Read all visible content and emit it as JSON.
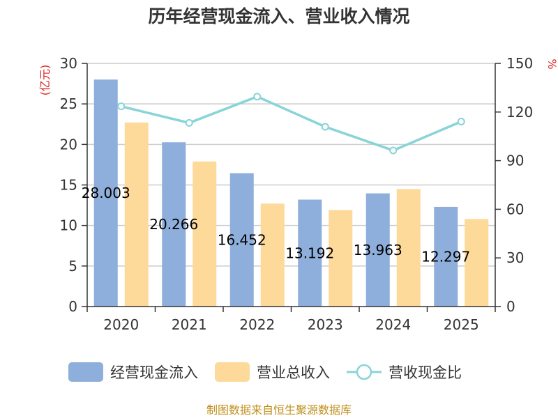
{
  "chart_data": {
    "type": "bar",
    "title": "历年经营现金流入、营业收入情况",
    "categories": [
      "2020",
      "2021",
      "2022",
      "2023",
      "2024",
      "2025"
    ],
    "left_axis": {
      "unit": "(亿元)",
      "ylim": [
        0,
        30
      ],
      "ticks": [
        "0",
        "5",
        "10",
        "15",
        "20",
        "25",
        "30"
      ]
    },
    "right_axis": {
      "unit": "%",
      "ylim": [
        0,
        150
      ],
      "ticks": [
        "0",
        "30",
        "60",
        "90",
        "120",
        "150"
      ]
    },
    "series": [
      {
        "name": "经营现金流入",
        "type": "bar",
        "axis": "left",
        "color": "#8eaedb",
        "values": [
          28.003,
          20.266,
          16.452,
          13.192,
          13.963,
          12.297
        ],
        "labels": [
          "28.003",
          "20.266",
          "16.452",
          "13.192",
          "13.963",
          "12.297"
        ]
      },
      {
        "name": "营业总收入",
        "type": "bar",
        "axis": "left",
        "color": "#fdd99a",
        "values": [
          22.7,
          17.9,
          12.7,
          11.9,
          14.5,
          10.8
        ]
      },
      {
        "name": "营收现金比",
        "type": "line",
        "axis": "right",
        "color": "#88d4d8",
        "values": [
          123.5,
          113.3,
          129.5,
          110.9,
          96.3,
          114.1
        ]
      }
    ],
    "grid": true,
    "legend_position": "bottom",
    "source_note": "制图数据来自恒生聚源数据库",
    "colors": {
      "axis_unit": "#e02020",
      "source": "#c0901c",
      "axis": "#333333",
      "grid": "#cccccc"
    }
  }
}
